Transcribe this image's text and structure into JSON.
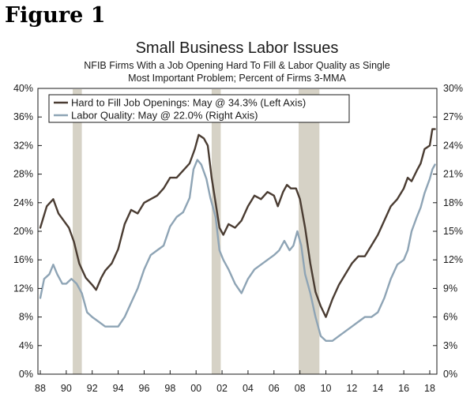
{
  "figure_label": "Figure 1",
  "chart_data": {
    "type": "line",
    "title": "Small Business Labor Issues",
    "subtitle_line1": "NFIB Firms With a Job Opening Hard To Fill & Labor Quality as Single",
    "subtitle_line2": "Most Important Problem; Percent of Firms 3-MMA",
    "xlim": [
      1988,
      2018.7
    ],
    "x_ticks": [
      1988,
      1990,
      1992,
      1994,
      1996,
      1998,
      2000,
      2002,
      2004,
      2006,
      2008,
      2010,
      2012,
      2014,
      2016,
      2018
    ],
    "x_tick_labels": [
      "88",
      "90",
      "92",
      "94",
      "96",
      "98",
      "00",
      "02",
      "04",
      "06",
      "08",
      "10",
      "12",
      "14",
      "16",
      "18"
    ],
    "left_axis": {
      "range": [
        0,
        40
      ],
      "ticks": [
        0,
        4,
        8,
        12,
        16,
        20,
        24,
        28,
        32,
        36,
        40
      ],
      "tick_labels": [
        "0%",
        "4%",
        "8%",
        "12%",
        "16%",
        "20%",
        "24%",
        "28%",
        "32%",
        "36%",
        "40%"
      ]
    },
    "right_axis": {
      "range": [
        0,
        30
      ],
      "ticks": [
        0,
        3,
        6,
        9,
        12,
        15,
        18,
        21,
        24,
        27,
        30
      ],
      "tick_labels": [
        "0%",
        "3%",
        "6%",
        "9%",
        "12%",
        "15%",
        "18%",
        "21%",
        "24%",
        "27%",
        "30%"
      ]
    },
    "recessions": [
      [
        1990.5,
        1991.2
      ],
      [
        2001.2,
        2001.9
      ],
      [
        2007.9,
        2009.5
      ]
    ],
    "series": [
      {
        "name": "Hard to Fill Job Openings: May @ 34.3% (Left Axis)",
        "axis": "left",
        "color": "#4a3c32",
        "x": [
          1988.0,
          1988.5,
          1989.0,
          1989.4,
          1989.8,
          1990.2,
          1990.6,
          1991.0,
          1991.5,
          1992.0,
          1992.3,
          1992.7,
          1993.0,
          1993.5,
          1994.0,
          1994.5,
          1995.0,
          1995.5,
          1996.0,
          1996.5,
          1997.0,
          1997.5,
          1998.0,
          1998.5,
          1999.0,
          1999.5,
          1999.9,
          2000.2,
          2000.6,
          2000.9,
          2001.2,
          2001.5,
          2001.8,
          2002.1,
          2002.5,
          2003.0,
          2003.5,
          2004.0,
          2004.5,
          2005.0,
          2005.5,
          2006.0,
          2006.3,
          2006.7,
          2007.0,
          2007.3,
          2007.7,
          2008.0,
          2008.4,
          2008.8,
          2009.2,
          2009.6,
          2010.0,
          2010.5,
          2011.0,
          2011.5,
          2012.0,
          2012.5,
          2013.0,
          2013.5,
          2014.0,
          2014.5,
          2015.0,
          2015.5,
          2016.0,
          2016.3,
          2016.6,
          2017.0,
          2017.3,
          2017.6,
          2018.0,
          2018.2,
          2018.4
        ],
        "values": [
          20.5,
          23.5,
          24.5,
          22.5,
          21.5,
          20.5,
          18.5,
          15.5,
          13.5,
          12.5,
          11.8,
          13.5,
          14.5,
          15.5,
          17.5,
          21.0,
          23.0,
          22.5,
          24.0,
          24.5,
          25.0,
          26.0,
          27.5,
          27.5,
          28.5,
          29.5,
          31.5,
          33.5,
          33.0,
          32.0,
          27.5,
          24.0,
          20.5,
          19.5,
          21.0,
          20.5,
          21.5,
          23.5,
          25.0,
          24.5,
          25.5,
          25.0,
          23.5,
          25.5,
          26.5,
          26.0,
          26.0,
          24.5,
          20.5,
          15.5,
          11.5,
          9.5,
          8.0,
          10.5,
          12.5,
          14.0,
          15.5,
          16.5,
          16.5,
          18.0,
          19.5,
          21.5,
          23.5,
          24.5,
          26.0,
          27.5,
          27.0,
          28.5,
          29.5,
          31.5,
          32.0,
          34.3,
          34.3
        ]
      },
      {
        "name": "Labor Quality: May @ 22.0% (Right Axis)",
        "axis": "right",
        "color": "#8ea4b5",
        "x": [
          1988.0,
          1988.3,
          1988.7,
          1989.0,
          1989.3,
          1989.7,
          1990.0,
          1990.4,
          1990.8,
          1991.2,
          1991.6,
          1992.0,
          1992.5,
          1993.0,
          1993.5,
          1994.0,
          1994.5,
          1995.0,
          1995.5,
          1996.0,
          1996.5,
          1997.0,
          1997.5,
          1998.0,
          1998.5,
          1999.0,
          1999.5,
          1999.8,
          2000.1,
          2000.4,
          2000.8,
          2001.1,
          2001.5,
          2001.8,
          2002.1,
          2002.5,
          2003.0,
          2003.5,
          2004.0,
          2004.5,
          2005.0,
          2005.5,
          2006.0,
          2006.4,
          2006.8,
          2007.2,
          2007.5,
          2007.8,
          2008.1,
          2008.4,
          2008.8,
          2009.2,
          2009.6,
          2010.0,
          2010.5,
          2011.0,
          2011.5,
          2012.0,
          2012.5,
          2013.0,
          2013.5,
          2014.0,
          2014.5,
          2015.0,
          2015.5,
          2016.0,
          2016.3,
          2016.6,
          2017.0,
          2017.3,
          2017.6,
          2018.0,
          2018.2,
          2018.4
        ],
        "values": [
          8.0,
          10.0,
          10.5,
          11.5,
          10.5,
          9.5,
          9.5,
          10.0,
          9.5,
          8.5,
          6.5,
          6.0,
          5.5,
          5.0,
          5.0,
          5.0,
          6.0,
          7.5,
          9.0,
          11.0,
          12.5,
          13.0,
          13.5,
          15.5,
          16.5,
          17.0,
          18.5,
          21.5,
          22.5,
          22.0,
          20.5,
          18.5,
          16.5,
          13.0,
          12.0,
          11.0,
          9.5,
          8.5,
          10.0,
          11.0,
          11.5,
          12.0,
          12.5,
          13.0,
          14.0,
          13.0,
          13.5,
          15.0,
          13.5,
          10.5,
          8.5,
          6.0,
          4.0,
          3.5,
          3.5,
          4.0,
          4.5,
          5.0,
          5.5,
          6.0,
          6.0,
          6.5,
          8.0,
          10.0,
          11.5,
          12.0,
          13.0,
          15.0,
          16.5,
          17.5,
          19.0,
          20.5,
          21.5,
          22.0
        ]
      }
    ]
  }
}
